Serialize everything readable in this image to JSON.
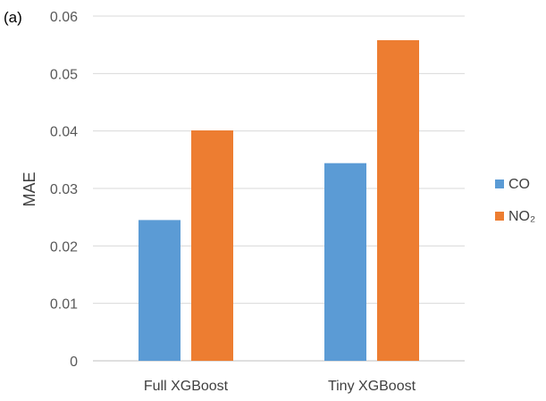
{
  "panel_label": "(a)",
  "chart_data": {
    "type": "bar",
    "categories": [
      "Full XGBoost",
      "Tiny XGBoost"
    ],
    "series": [
      {
        "name": "CO",
        "values": [
          0.0245,
          0.0344
        ],
        "color": "#5b9bd5"
      },
      {
        "name": "NO₂",
        "values": [
          0.0401,
          0.0558
        ],
        "color": "#ed7d31"
      }
    ],
    "title": "",
    "xlabel": "",
    "ylabel": "MAE",
    "ylim": [
      0,
      0.06
    ],
    "yticks": [
      "0",
      "0.01",
      "0.02",
      "0.03",
      "0.04",
      "0.05",
      "0.06"
    ],
    "grid": true,
    "legend_position": "right"
  }
}
